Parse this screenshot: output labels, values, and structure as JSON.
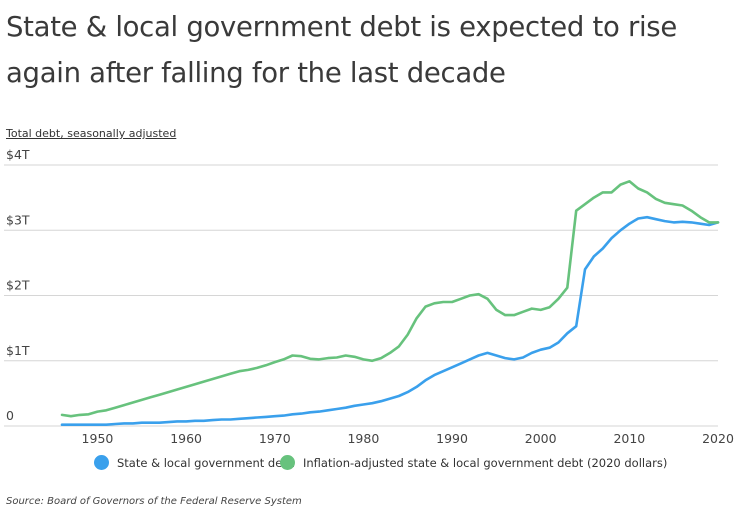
{
  "title": "State & local government debt is expected to rise again after falling for the last decade",
  "subtitle": "Total debt, seasonally adjusted",
  "source": "Source:  Board of Governors of the Federal Reserve System",
  "colors": {
    "nominal": "#3aa0ec",
    "adjusted": "#67c27d",
    "grid": "#d6d6d6"
  },
  "chart_data": {
    "type": "line",
    "title": "State & local government debt is expected to rise again after falling for the last decade",
    "ylabel": "Total debt, seasonally adjusted",
    "xlim": [
      1946,
      2020
    ],
    "ylim": [
      0,
      4
    ],
    "y_ticks": [
      {
        "value": 0,
        "label": "0"
      },
      {
        "value": 1,
        "label": "$1T"
      },
      {
        "value": 2,
        "label": "$2T"
      },
      {
        "value": 3,
        "label": "$3T"
      },
      {
        "value": 4,
        "label": "$4T"
      }
    ],
    "x_ticks": [
      1950,
      1960,
      1970,
      1980,
      1990,
      2000,
      2010,
      2020
    ],
    "grid": true,
    "legend_position": "bottom",
    "series": [
      {
        "name": "State & local government debt",
        "key": "nominal",
        "x": [
          1946,
          1947,
          1948,
          1949,
          1950,
          1951,
          1952,
          1953,
          1954,
          1955,
          1956,
          1957,
          1958,
          1959,
          1960,
          1961,
          1962,
          1963,
          1964,
          1965,
          1966,
          1967,
          1968,
          1969,
          1970,
          1971,
          1972,
          1973,
          1974,
          1975,
          1976,
          1977,
          1978,
          1979,
          1980,
          1981,
          1982,
          1983,
          1984,
          1985,
          1986,
          1987,
          1988,
          1989,
          1990,
          1991,
          1992,
          1993,
          1994,
          1995,
          1996,
          1997,
          1998,
          1999,
          2000,
          2001,
          2002,
          2003,
          2004,
          2005,
          2006,
          2007,
          2008,
          2009,
          2010,
          2011,
          2012,
          2013,
          2014,
          2015,
          2016,
          2017,
          2018,
          2019,
          2020
        ],
        "values": [
          0.02,
          0.02,
          0.02,
          0.02,
          0.02,
          0.02,
          0.03,
          0.04,
          0.04,
          0.05,
          0.05,
          0.05,
          0.06,
          0.07,
          0.07,
          0.08,
          0.08,
          0.09,
          0.1,
          0.1,
          0.11,
          0.12,
          0.13,
          0.14,
          0.15,
          0.16,
          0.18,
          0.19,
          0.21,
          0.22,
          0.24,
          0.26,
          0.28,
          0.31,
          0.33,
          0.35,
          0.38,
          0.42,
          0.46,
          0.52,
          0.6,
          0.7,
          0.78,
          0.84,
          0.9,
          0.96,
          1.02,
          1.08,
          1.12,
          1.08,
          1.04,
          1.02,
          1.05,
          1.12,
          1.17,
          1.2,
          1.28,
          1.42,
          1.53,
          2.4,
          2.6,
          2.72,
          2.88,
          3.0,
          3.1,
          3.18,
          3.2,
          3.17,
          3.14,
          3.12,
          3.13,
          3.12,
          3.1,
          3.08,
          3.12
        ]
      },
      {
        "name": "Inflation-adjusted state & local government debt (2020 dollars)",
        "key": "adjusted",
        "x": [
          1946,
          1947,
          1948,
          1949,
          1950,
          1951,
          1952,
          1953,
          1954,
          1955,
          1956,
          1957,
          1958,
          1959,
          1960,
          1961,
          1962,
          1963,
          1964,
          1965,
          1966,
          1967,
          1968,
          1969,
          1970,
          1971,
          1972,
          1973,
          1974,
          1975,
          1976,
          1977,
          1978,
          1979,
          1980,
          1981,
          1982,
          1983,
          1984,
          1985,
          1986,
          1987,
          1988,
          1989,
          1990,
          1991,
          1992,
          1993,
          1994,
          1995,
          1996,
          1997,
          1998,
          1999,
          2000,
          2001,
          2002,
          2003,
          2004,
          2005,
          2006,
          2007,
          2008,
          2009,
          2010,
          2011,
          2012,
          2013,
          2014,
          2015,
          2016,
          2017,
          2018,
          2019,
          2020
        ],
        "values": [
          0.17,
          0.15,
          0.17,
          0.18,
          0.22,
          0.24,
          0.28,
          0.32,
          0.36,
          0.4,
          0.44,
          0.48,
          0.52,
          0.56,
          0.6,
          0.64,
          0.68,
          0.72,
          0.76,
          0.8,
          0.84,
          0.86,
          0.89,
          0.93,
          0.98,
          1.02,
          1.08,
          1.07,
          1.03,
          1.02,
          1.04,
          1.05,
          1.08,
          1.06,
          1.02,
          1.0,
          1.04,
          1.12,
          1.22,
          1.4,
          1.65,
          1.83,
          1.88,
          1.9,
          1.9,
          1.95,
          2.0,
          2.02,
          1.95,
          1.78,
          1.7,
          1.7,
          1.75,
          1.8,
          1.78,
          1.82,
          1.95,
          2.12,
          3.3,
          3.4,
          3.5,
          3.58,
          3.58,
          3.7,
          3.75,
          3.64,
          3.58,
          3.48,
          3.42,
          3.4,
          3.38,
          3.3,
          3.2,
          3.12,
          3.12
        ]
      }
    ]
  }
}
